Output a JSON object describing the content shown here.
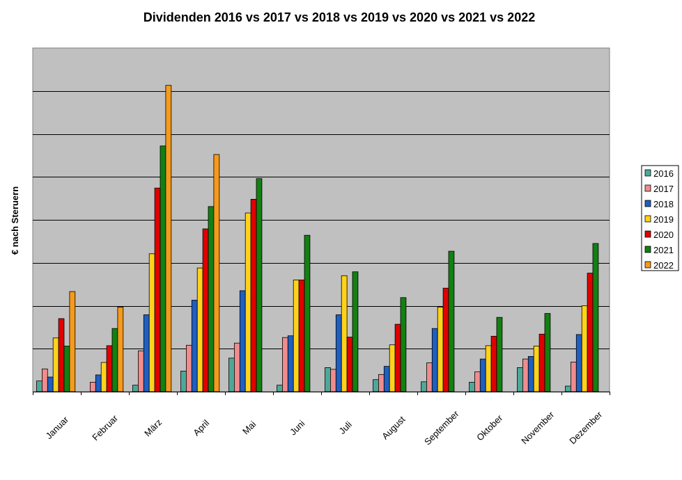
{
  "chart_data": {
    "type": "bar",
    "title": "Dividenden 2016 vs 2017 vs 2018 vs 2019 vs 2020 vs 2021 vs 2022",
    "xlabel": "",
    "ylabel": "€ nach Steruern",
    "ylim": [
      0,
      8
    ],
    "y_tick_labels_shown": false,
    "grid": true,
    "legend_position": "right",
    "categories": [
      "Januar",
      "Februar",
      "März",
      "April",
      "Mai",
      "Juni",
      "Juli",
      "August",
      "September",
      "Oktober",
      "November",
      "Dezember"
    ],
    "series": [
      {
        "name": "2016",
        "color": "#4DA89A",
        "values": [
          0.25,
          0.0,
          0.15,
          0.48,
          0.78,
          0.15,
          0.56,
          0.28,
          0.23,
          0.22,
          0.56,
          0.13
        ]
      },
      {
        "name": "2017",
        "color": "#F08C8C",
        "values": [
          0.53,
          0.22,
          0.95,
          1.08,
          1.13,
          1.26,
          0.52,
          0.4,
          0.67,
          0.46,
          0.76,
          0.69
        ]
      },
      {
        "name": "2018",
        "color": "#1F5FC0",
        "values": [
          0.34,
          0.39,
          1.79,
          2.13,
          2.35,
          1.3,
          1.79,
          0.59,
          1.47,
          0.76,
          0.82,
          1.33
        ]
      },
      {
        "name": "2019",
        "color": "#FFD21C",
        "values": [
          1.25,
          0.68,
          3.21,
          2.88,
          4.16,
          2.6,
          2.7,
          1.09,
          1.97,
          1.07,
          1.06,
          2.0
        ]
      },
      {
        "name": "2020",
        "color": "#E00000",
        "values": [
          1.7,
          1.07,
          4.74,
          3.79,
          4.48,
          2.6,
          1.27,
          1.57,
          2.41,
          1.29,
          1.34,
          2.76
        ]
      },
      {
        "name": "2021",
        "color": "#128012",
        "values": [
          1.06,
          1.47,
          5.72,
          4.31,
          4.96,
          3.64,
          2.79,
          2.19,
          3.27,
          1.73,
          1.82,
          3.45
        ]
      },
      {
        "name": "2022",
        "color": "#F49A1E",
        "values": [
          2.33,
          1.97,
          7.13,
          5.52,
          null,
          null,
          null,
          null,
          null,
          null,
          null,
          null
        ]
      }
    ]
  }
}
